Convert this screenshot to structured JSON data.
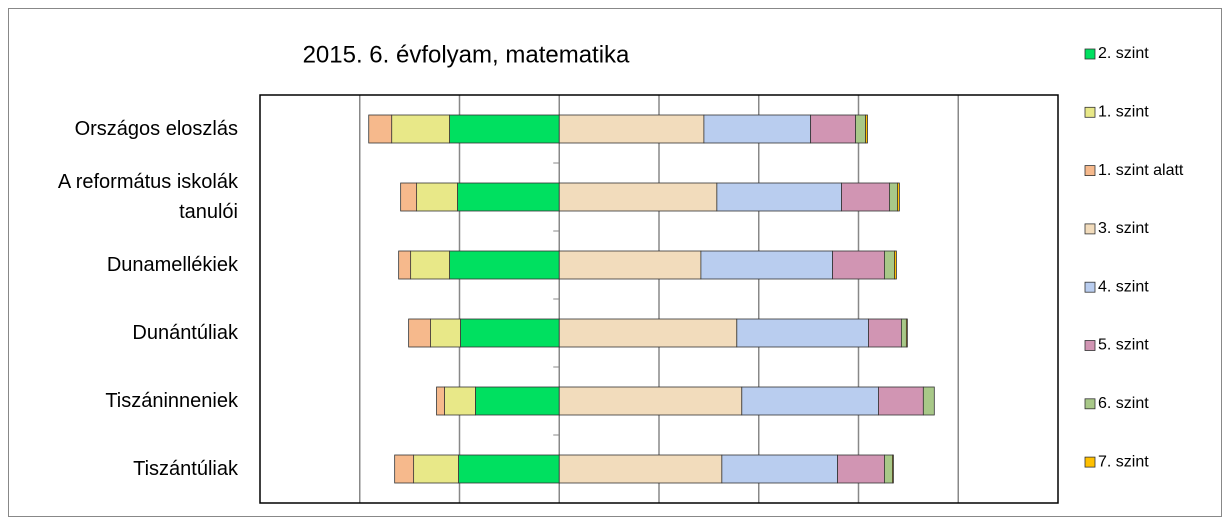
{
  "chart_data": {
    "type": "diverging-stacked-bar",
    "title": "2015. 6. évfolyam, matematika",
    "categories": [
      "Országos eloszlás",
      "A református iskolák tanulói",
      "Dunamellékiek",
      "Dunántúliak",
      "Tiszáninneniek",
      "Tiszántúliak"
    ],
    "series": [
      {
        "name": "2. szint",
        "color": "#00e060",
        "values": [
          -22,
          -20.4,
          -22,
          -19.8,
          -16.8,
          -20.2
        ]
      },
      {
        "name": "1. szint",
        "color": "#e8e888",
        "values": [
          -11.6,
          -8.2,
          -7.8,
          -6,
          -6.2,
          -9
        ]
      },
      {
        "name": "1. szint alatt",
        "color": "#f6b98c",
        "values": [
          -4.6,
          -3.2,
          -2.4,
          -4.4,
          -1.6,
          -3.8
        ]
      },
      {
        "name": "3. szint",
        "color": "#f2dcbc",
        "values": [
          29,
          31.6,
          28.4,
          35.6,
          36.6,
          32.6
        ]
      },
      {
        "name": "4. szint",
        "color": "#b9cdef",
        "values": [
          21.4,
          25,
          26.4,
          26.4,
          27.4,
          23.2
        ]
      },
      {
        "name": "5. szint",
        "color": "#d195b3",
        "values": [
          9,
          9.6,
          10.4,
          6.6,
          9,
          9.4
        ]
      },
      {
        "name": "6. szint",
        "color": "#a8c888",
        "values": [
          2,
          1.6,
          2,
          1,
          2.2,
          1.6
        ]
      },
      {
        "name": "7. szint",
        "color": "#ffc000",
        "values": [
          0.4,
          0.4,
          0.4,
          0.2,
          0,
          0.2
        ]
      }
    ],
    "xlim": [
      -60,
      100
    ],
    "xticks": [
      -40,
      -20,
      0,
      20,
      40,
      60,
      80
    ],
    "grid": true,
    "legend": "right"
  }
}
